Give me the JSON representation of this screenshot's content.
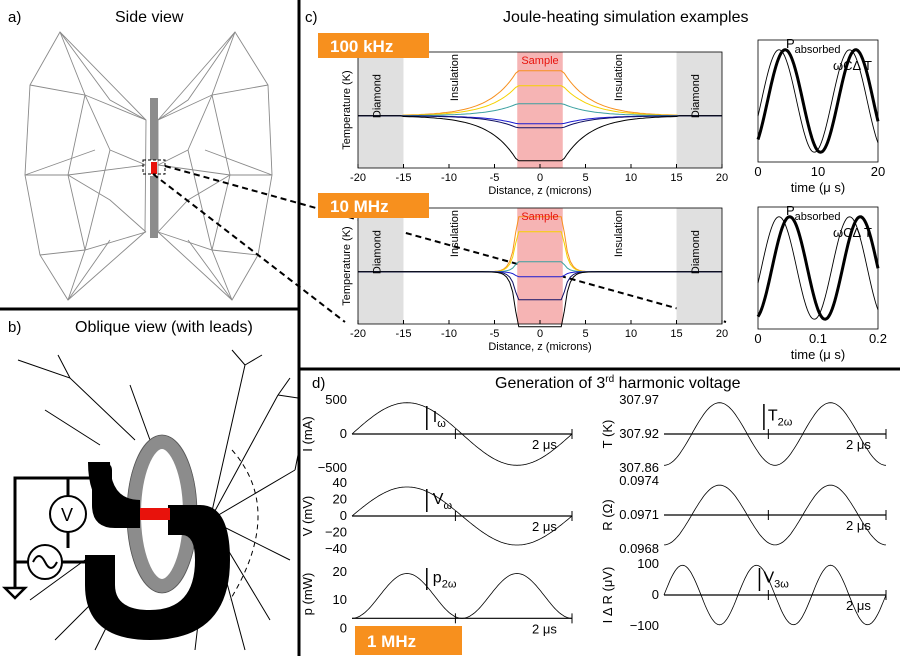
{
  "panel_a": {
    "label": "a)",
    "title": "Side view"
  },
  "panel_b": {
    "label": "b)",
    "title": "Oblique view (with leads)",
    "voltmeter_symbol": "V",
    "source_symbol": "~"
  },
  "panel_c": {
    "label": "c)",
    "title": "Joule-heating simulation examples",
    "plots": [
      {
        "badge": "100 kHz",
        "ylabel": "Temperature (K)",
        "xlabel": "Distance, z (microns)",
        "xticks": [
          "-20",
          "-15",
          "-10",
          "-5",
          "0",
          "5",
          "10",
          "15",
          "20"
        ],
        "regions": {
          "left": "Diamond",
          "ins_left": "Insulation",
          "sample": "Sample",
          "ins_right": "Insulation",
          "right": "Diamond"
        }
      },
      {
        "badge": "10 MHz",
        "ylabel": "Temperature (K)",
        "xlabel": "Distance, z (microns)",
        "xticks": [
          "-20",
          "-15",
          "-10",
          "-5",
          "0",
          "5",
          "10",
          "15",
          "20"
        ],
        "regions": {
          "left": "Diamond",
          "ins_left": "Insulation",
          "sample": "Sample",
          "ins_right": "Insulation",
          "right": "Diamond"
        }
      }
    ],
    "phase_plots": [
      {
        "xlabel": "time (μ s)",
        "xticks": [
          "0",
          "10",
          "20"
        ],
        "label_p": "P",
        "label_p_sub": "absorbed",
        "label_c": "ωCΔ T"
      },
      {
        "xlabel": "time (μ s)",
        "xticks": [
          "0",
          "0.1",
          "0.2"
        ],
        "label_p": "P",
        "label_p_sub": "absorbed",
        "label_c": "ωCΔ T"
      }
    ]
  },
  "panel_d": {
    "label": "d)",
    "title_main": "Generation of 3",
    "title_sup": "rd",
    "title_tail": " harmonic voltage",
    "badge": "1 MHz",
    "period_label": "2 μs",
    "left": [
      {
        "ylabel": "I (mA)",
        "yticks": [
          "500",
          "0",
          "−500"
        ],
        "amp_main": "I",
        "amp_sub": "ω"
      },
      {
        "ylabel": "V (mV)",
        "yticks": [
          "40",
          "20",
          "0",
          "−20",
          "−40"
        ],
        "amp_main": "V",
        "amp_sub": "ω"
      },
      {
        "ylabel": "p (mW)",
        "yticks": [
          "20",
          "10",
          "0"
        ],
        "amp_main": "p",
        "amp_sub": "2ω"
      }
    ],
    "right": [
      {
        "ylabel": "T (K)",
        "yticks": [
          "307.97",
          "307.92",
          "307.86"
        ],
        "amp_main": "T",
        "amp_sub": "2ω"
      },
      {
        "ylabel": "R (Ω)",
        "yticks": [
          "0.0974",
          "0.0971",
          "0.0968"
        ]
      },
      {
        "ylabel": "I Δ R (μV)",
        "yticks": [
          "100",
          "0",
          "−100"
        ],
        "amp_main": "V",
        "amp_sub": "3ω"
      }
    ]
  },
  "colors": {
    "badge": "#f7901e",
    "sample_band": "#f6b4b4",
    "diamond_band": "#e0e0e0",
    "lead": "#000000",
    "hot_spot": "#e8120c",
    "ring": "#8c8c8c",
    "sample_text": "#e8120c"
  }
}
